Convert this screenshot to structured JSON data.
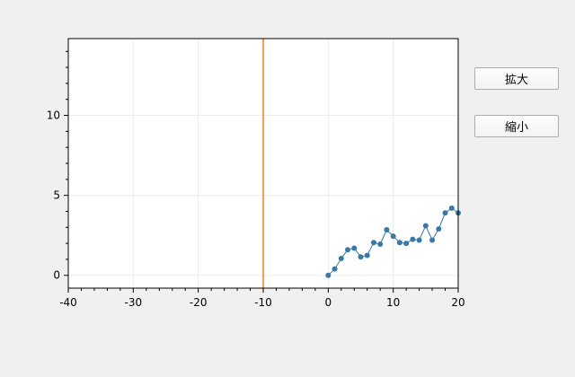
{
  "controls": {
    "zoom_in_label": "拡大",
    "zoom_out_label": "縮小"
  },
  "chart_data": {
    "type": "line",
    "title": "",
    "xlabel": "",
    "ylabel": "",
    "xlim": [
      -40,
      20
    ],
    "ylim": [
      -0.8,
      14.8
    ],
    "x_ticks": [
      -40,
      -30,
      -20,
      -10,
      0,
      10,
      20
    ],
    "y_ticks": [
      0,
      5,
      10
    ],
    "grid": true,
    "series": [
      {
        "color": "#3a79a6",
        "x": [
          0,
          1,
          2,
          3,
          4,
          5,
          6,
          7,
          8,
          9,
          10,
          11,
          12,
          13,
          14,
          15,
          16,
          17,
          18,
          19,
          20
        ],
        "values": [
          0,
          0.4,
          1.05,
          1.6,
          1.7,
          1.15,
          1.25,
          2.05,
          1.95,
          2.85,
          2.45,
          2.05,
          2.0,
          2.25,
          2.2,
          3.1,
          2.2,
          2.9,
          3.9,
          4.2,
          3.9
        ]
      }
    ],
    "vertical_line": {
      "x": -10,
      "color": "#ff7f0e"
    }
  }
}
